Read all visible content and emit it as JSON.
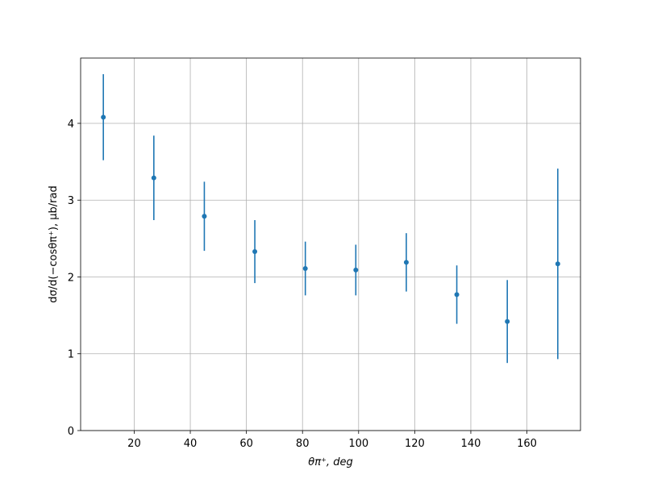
{
  "chart_data": {
    "type": "errorbar",
    "x_label": "θπ⁺, deg",
    "y_label": "dσ/d(−cosθπ⁺), μb/rad",
    "x": [
      9,
      27,
      45,
      63,
      81,
      99,
      117,
      135,
      153,
      171
    ],
    "values": [
      4.08,
      3.29,
      2.79,
      2.33,
      2.11,
      2.09,
      2.19,
      1.77,
      1.42,
      2.17
    ],
    "errors": [
      0.56,
      0.55,
      0.45,
      0.41,
      0.35,
      0.33,
      0.38,
      0.38,
      0.54,
      1.24
    ],
    "color": "#1f77b4",
    "xlim": [
      0.9,
      179.1
    ],
    "xticks": [
      20,
      40,
      60,
      80,
      100,
      120,
      140,
      160
    ],
    "ylim": [
      0,
      4.85
    ],
    "yticks": [
      0,
      1,
      2,
      3,
      4
    ],
    "grid": true
  }
}
